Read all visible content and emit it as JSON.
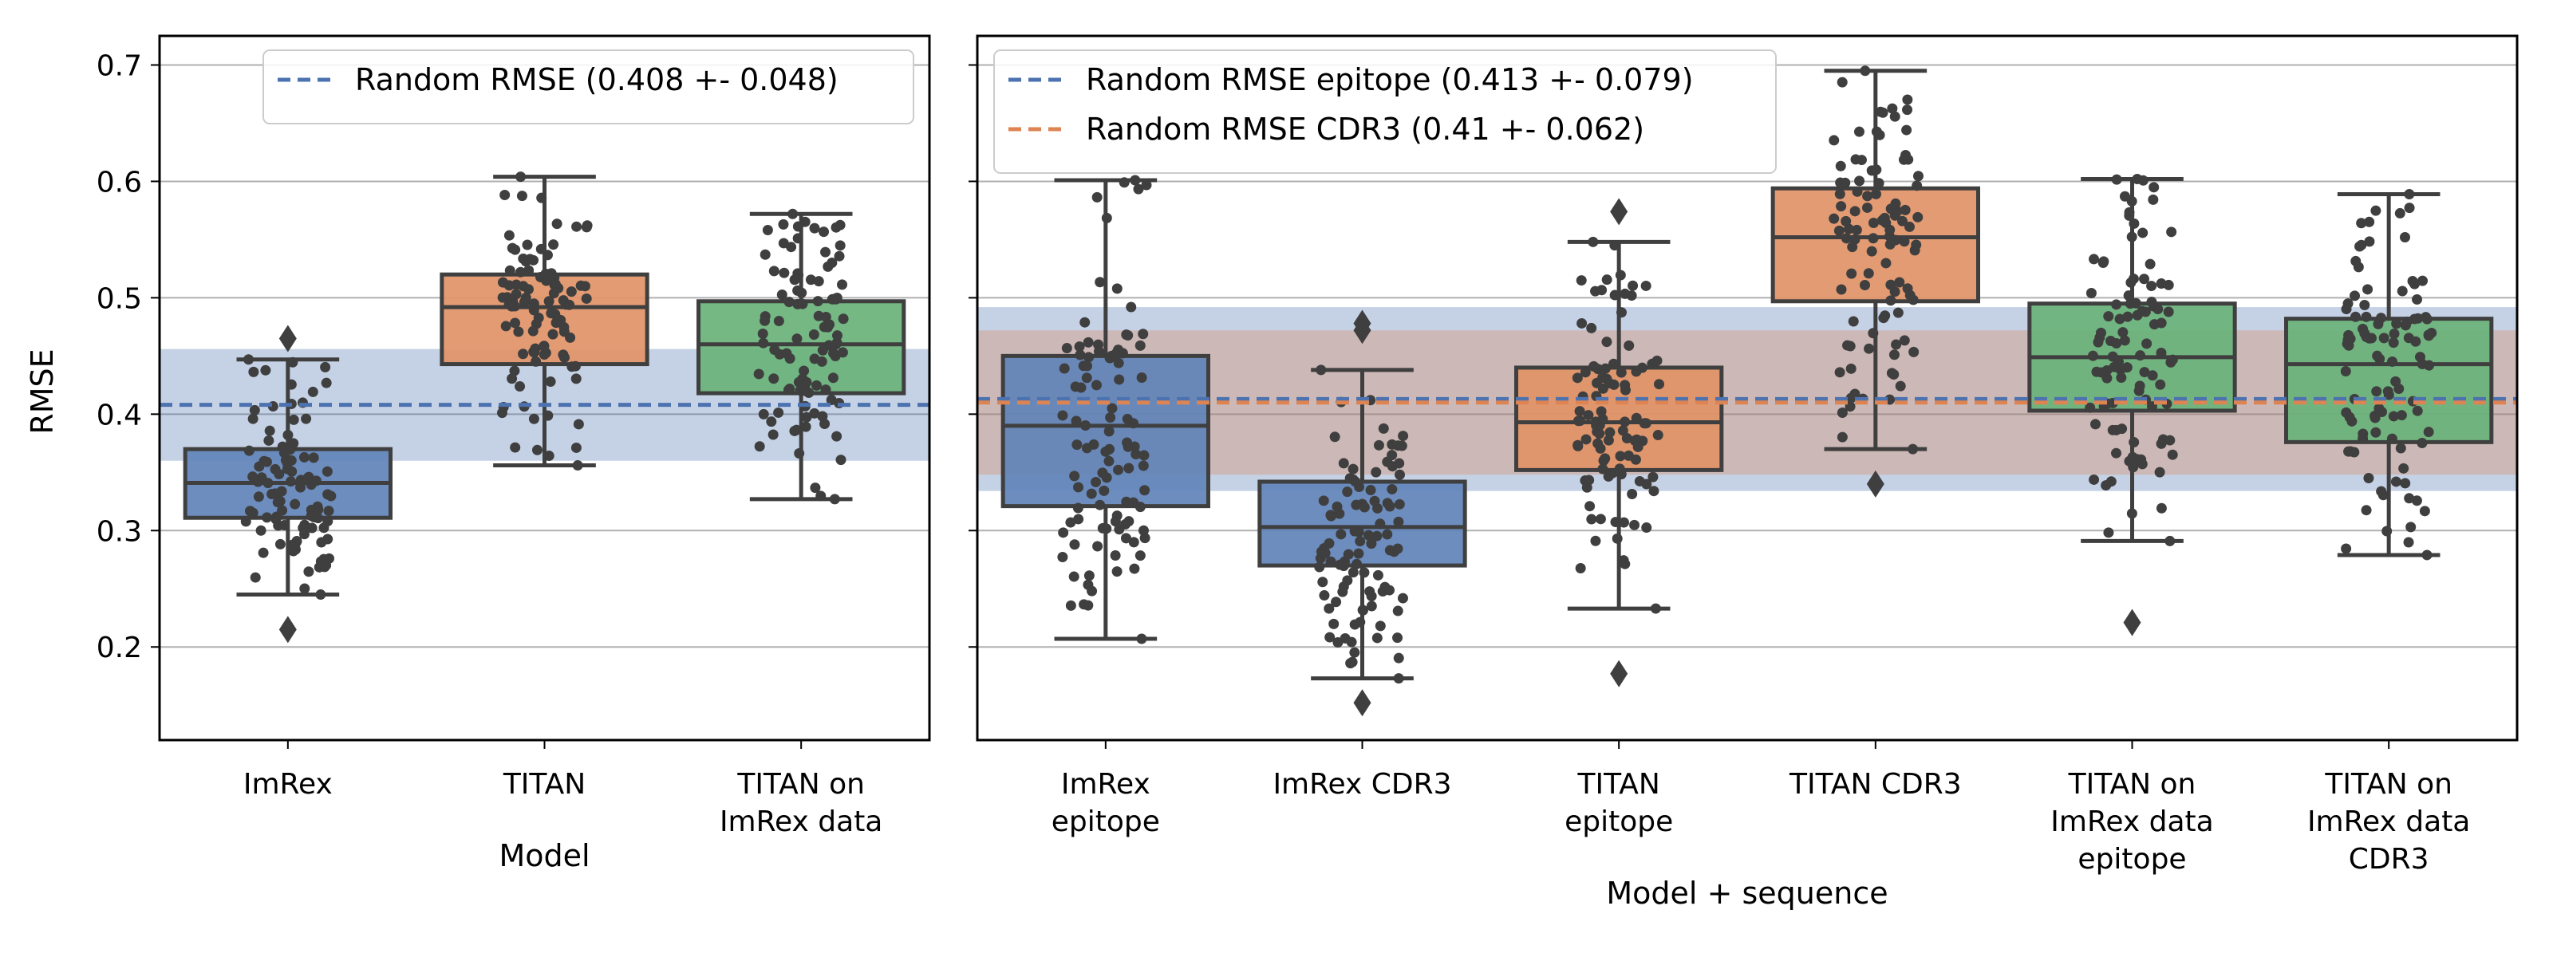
{
  "y_axis_label": "RMSE",
  "y_ticks": [
    "0.2",
    "0.3",
    "0.4",
    "0.5",
    "0.6",
    "0.7"
  ],
  "chart_data": [
    {
      "type": "box",
      "xlabel": "Model",
      "ylabel": "RMSE",
      "ylim": [
        0.12,
        0.725
      ],
      "grid": "horizontal",
      "legend_position": "top-right",
      "categories": [
        "ImRex",
        "TITAN",
        "TITAN on ImRex data"
      ],
      "boxes": [
        {
          "name": "ImRex",
          "label_lines": [
            "ImRex"
          ],
          "color": "#4c72b0",
          "q1": 0.311,
          "median": 0.341,
          "q3": 0.37,
          "whisker_low": 0.245,
          "whisker_high": 0.447,
          "outliers": [
            0.215,
            0.465
          ]
        },
        {
          "name": "TITAN",
          "label_lines": [
            "TITAN"
          ],
          "color": "#dd8452",
          "q1": 0.443,
          "median": 0.492,
          "q3": 0.52,
          "whisker_low": 0.356,
          "whisker_high": 0.604,
          "outliers": []
        },
        {
          "name": "TITAN on ImRex data",
          "label_lines": [
            "TITAN on",
            "ImRex data"
          ],
          "color": "#55a868",
          "q1": 0.418,
          "median": 0.46,
          "q3": 0.497,
          "whisker_low": 0.327,
          "whisker_high": 0.572,
          "outliers": []
        }
      ],
      "reference_lines": [
        {
          "label": "Random RMSE (0.408 +- 0.048)",
          "mean": 0.408,
          "std": 0.048,
          "color": "#4c72b0"
        }
      ]
    },
    {
      "type": "box",
      "xlabel": "Model + sequence",
      "ylabel": "",
      "ylim": [
        0.12,
        0.725
      ],
      "grid": "horizontal",
      "legend_position": "top-left",
      "categories": [
        "ImRex epitope",
        "ImRex CDR3",
        "TITAN epitope",
        "TITAN CDR3",
        "TITAN on ImRex data epitope",
        "TITAN on ImRex data CDR3"
      ],
      "boxes": [
        {
          "name": "ImRex epitope",
          "label_lines": [
            "ImRex",
            "epitope"
          ],
          "color": "#4c72b0",
          "q1": 0.321,
          "median": 0.39,
          "q3": 0.45,
          "whisker_low": 0.207,
          "whisker_high": 0.601,
          "outliers": []
        },
        {
          "name": "ImRex CDR3",
          "label_lines": [
            "ImRex CDR3"
          ],
          "color": "#4c72b0",
          "q1": 0.27,
          "median": 0.303,
          "q3": 0.342,
          "whisker_low": 0.173,
          "whisker_high": 0.438,
          "outliers": [
            0.152,
            0.472,
            0.478
          ]
        },
        {
          "name": "TITAN epitope",
          "label_lines": [
            "TITAN",
            "epitope"
          ],
          "color": "#dd8452",
          "q1": 0.352,
          "median": 0.393,
          "q3": 0.44,
          "whisker_low": 0.233,
          "whisker_high": 0.548,
          "outliers": [
            0.177,
            0.574
          ]
        },
        {
          "name": "TITAN CDR3",
          "label_lines": [
            "TITAN CDR3"
          ],
          "color": "#dd8452",
          "q1": 0.497,
          "median": 0.552,
          "q3": 0.594,
          "whisker_low": 0.37,
          "whisker_high": 0.695,
          "outliers": [
            0.34
          ]
        },
        {
          "name": "TITAN on ImRex data epitope",
          "label_lines": [
            "TITAN on",
            "ImRex data",
            "epitope"
          ],
          "color": "#55a868",
          "q1": 0.403,
          "median": 0.449,
          "q3": 0.495,
          "whisker_low": 0.291,
          "whisker_high": 0.602,
          "outliers": [
            0.221
          ]
        },
        {
          "name": "TITAN on ImRex data CDR3",
          "label_lines": [
            "TITAN on",
            "ImRex data",
            "CDR3"
          ],
          "color": "#55a868",
          "q1": 0.376,
          "median": 0.443,
          "q3": 0.482,
          "whisker_low": 0.279,
          "whisker_high": 0.589,
          "outliers": []
        }
      ],
      "reference_lines": [
        {
          "label": "Random RMSE epitope (0.413 +- 0.079)",
          "mean": 0.413,
          "std": 0.079,
          "color": "#4c72b0"
        },
        {
          "label": "Random RMSE CDR3 (0.41 +- 0.062)",
          "mean": 0.41,
          "std": 0.062,
          "color": "#dd8452"
        }
      ]
    }
  ]
}
